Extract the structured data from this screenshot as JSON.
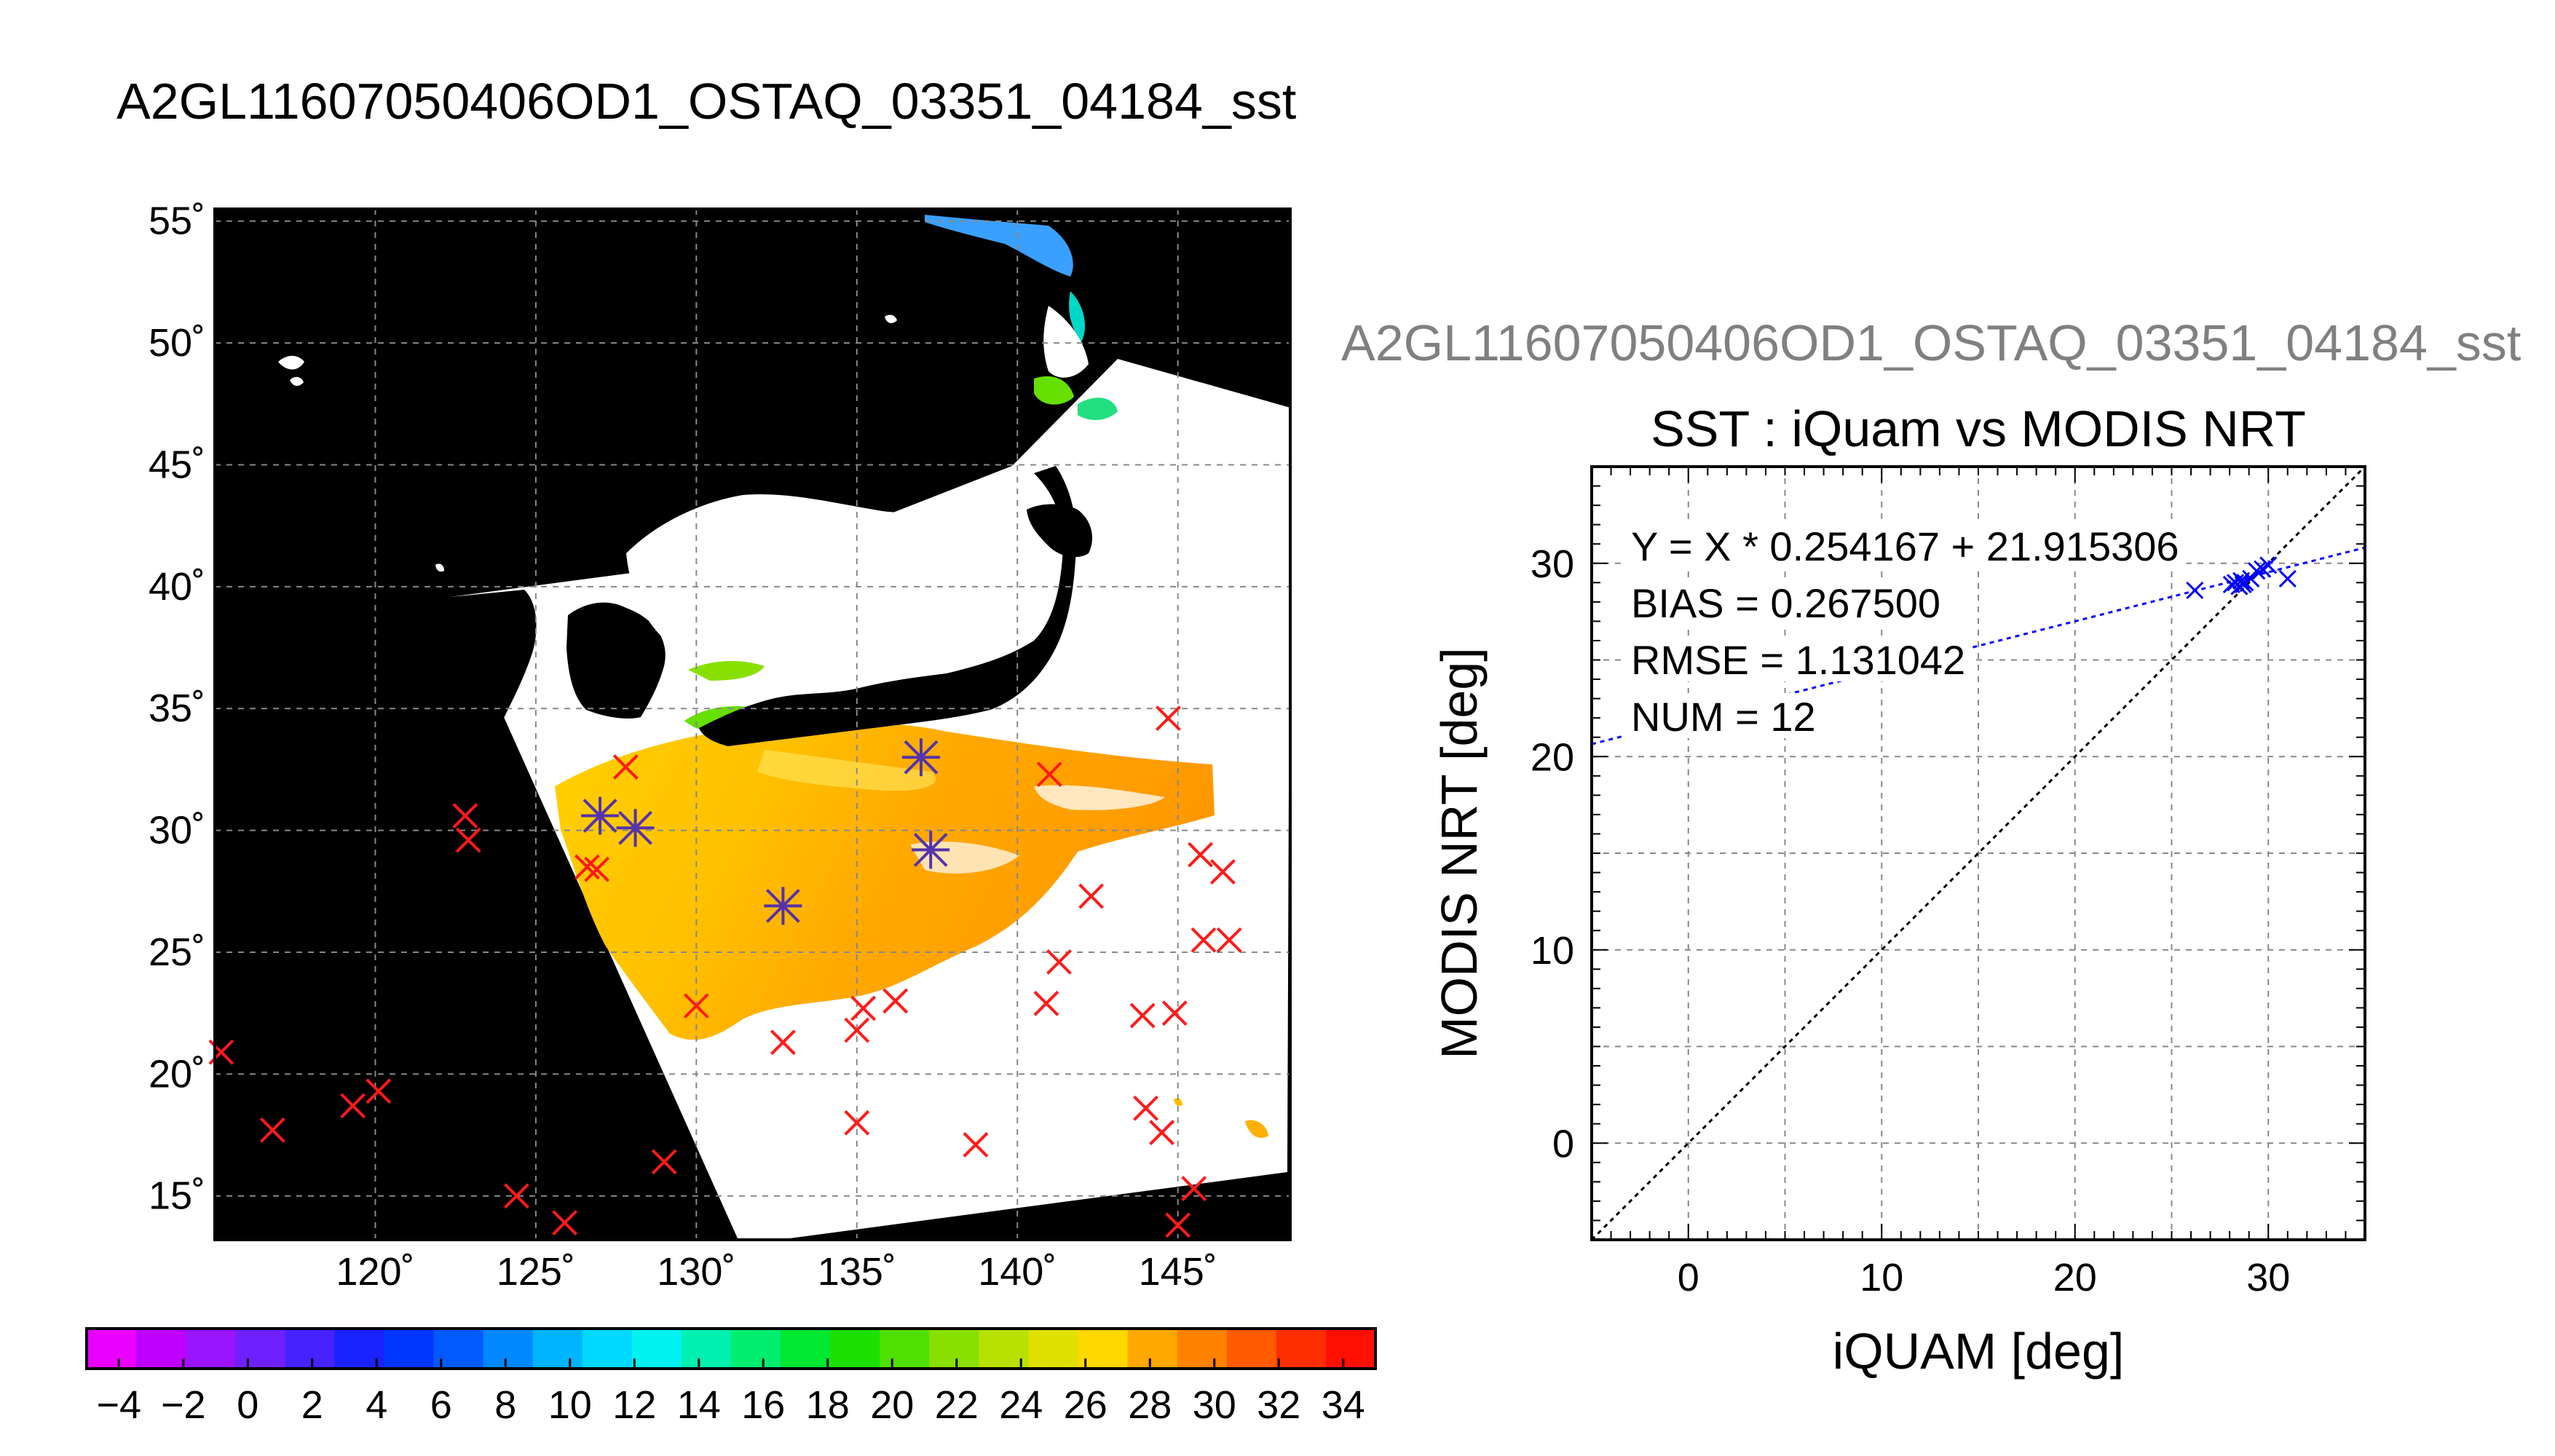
{
  "page_title": "A2GL11607050406OD1_OSTAQ_03351_04184_sst",
  "scatter_overlay_title": "A2GL11607050406OD1_OSTAQ_03351_04184_sst",
  "map": {
    "lon_ticks": [
      "120˚",
      "125˚",
      "130˚",
      "135˚",
      "140˚",
      "145˚"
    ],
    "lat_ticks": [
      "15˚",
      "20˚",
      "25˚",
      "30˚",
      "35˚",
      "40˚",
      "45˚",
      "50˚",
      "55˚"
    ],
    "lon_range": [
      115,
      148.5
    ],
    "lat_range": [
      13.2,
      55.5
    ],
    "marker_red_color": "#ff1a1a",
    "marker_match_color": "#5533aa"
  },
  "colorbar": {
    "tick_labels": [
      "−4",
      "−2",
      "0",
      "2",
      "4",
      "6",
      "8",
      "10",
      "12",
      "14",
      "16",
      "18",
      "20",
      "22",
      "24",
      "26",
      "28",
      "30",
      "32",
      "34"
    ],
    "range": [
      -5,
      35
    ],
    "step": 2,
    "colors": [
      "#ea00ff",
      "#c000ff",
      "#9a14ff",
      "#6f20ff",
      "#4622ff",
      "#1a22ff",
      "#0036ff",
      "#005aff",
      "#0088ff",
      "#00b4ff",
      "#00d8ff",
      "#00f2f0",
      "#00f0b0",
      "#00ee70",
      "#00e830",
      "#1ce000",
      "#50e000",
      "#88e000",
      "#b8e000",
      "#e0e000",
      "#ffd800",
      "#ffa800",
      "#ff8200",
      "#ff5a00",
      "#ff2e00",
      "#ff1000"
    ]
  },
  "chart_data": [
    {
      "type": "scatter",
      "title": "",
      "xlabel": "",
      "ylabel": "",
      "description": "SST map with buoy match-up markers",
      "xlim": [
        115,
        148.5
      ],
      "ylim": [
        13.2,
        55.5
      ],
      "series": [
        {
          "name": "",
          "marker": "x",
          "color": "#ff1a1a",
          "points": [
            [
              115.2,
              20.9
            ],
            [
              116.8,
              17.7
            ],
            [
              119.3,
              18.7
            ],
            [
              120.1,
              19.3
            ],
            [
              122.8,
              30.6
            ],
            [
              122.9,
              29.6
            ],
            [
              124.4,
              15.0
            ],
            [
              125.9,
              13.9
            ],
            [
              127.8,
              32.6
            ],
            [
              126.6,
              28.5
            ],
            [
              126.9,
              28.4
            ],
            [
              129.0,
              16.4
            ],
            [
              130.0,
              22.8
            ],
            [
              132.7,
              21.3
            ],
            [
              135.0,
              18.0
            ],
            [
              135.0,
              21.8
            ],
            [
              135.2,
              22.7
            ],
            [
              136.2,
              23.0
            ],
            [
              138.7,
              17.1
            ],
            [
              140.9,
              22.9
            ],
            [
              141.0,
              32.3
            ],
            [
              141.3,
              24.6
            ],
            [
              142.3,
              27.3
            ],
            [
              143.9,
              22.4
            ],
            [
              144.0,
              18.6
            ],
            [
              144.5,
              17.6
            ],
            [
              144.7,
              34.6
            ],
            [
              144.9,
              22.5
            ],
            [
              145.0,
              13.8
            ],
            [
              145.5,
              15.3
            ],
            [
              145.7,
              29.0
            ],
            [
              145.8,
              25.5
            ],
            [
              146.4,
              28.3
            ],
            [
              146.6,
              25.5
            ]
          ]
        },
        {
          "name": "",
          "marker": "*",
          "color": "#5533aa",
          "points": [
            [
              127.0,
              30.6
            ],
            [
              128.1,
              30.1
            ],
            [
              132.7,
              26.9
            ],
            [
              137.0,
              33.0
            ],
            [
              137.3,
              29.2
            ]
          ]
        }
      ]
    },
    {
      "type": "scatter",
      "title": "SST : iQuam vs MODIS NRT",
      "xlabel": "iQUAM [deg]",
      "ylabel": "MODIS NRT [deg]",
      "xlim": [
        -5,
        35
      ],
      "ylim": [
        -5,
        35
      ],
      "x_ticks": [
        0,
        10,
        20,
        30
      ],
      "y_ticks": [
        0,
        10,
        20,
        30
      ],
      "grid": true,
      "annotations": [
        "Y = X * 0.254167 + 21.915306",
        "BIAS = 0.267500",
        "RMSE = 1.131042",
        "NUM = 12"
      ],
      "regression": {
        "slope": 0.254167,
        "intercept": 21.915306
      },
      "series": [
        {
          "name": "",
          "marker": "x",
          "color": "#0000ff",
          "x": [
            26.2,
            28.1,
            28.3,
            28.5,
            28.6,
            28.7,
            28.8,
            29.1,
            29.4,
            29.7,
            30.0,
            31.0
          ],
          "y": [
            28.6,
            28.9,
            29.0,
            28.8,
            29.1,
            28.9,
            29.0,
            29.2,
            29.6,
            29.7,
            29.9,
            29.2
          ]
        }
      ]
    }
  ]
}
